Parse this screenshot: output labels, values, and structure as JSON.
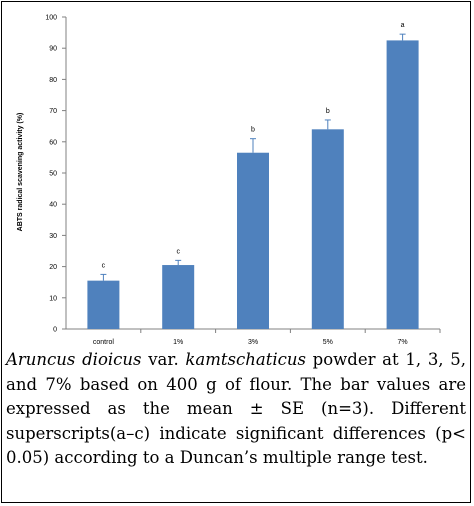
{
  "chart_data": {
    "type": "bar",
    "categories": [
      "control",
      "1%",
      "3%",
      "5%",
      "7%"
    ],
    "values": [
      15.5,
      20.5,
      56.5,
      64,
      92.5
    ],
    "errors": [
      2,
      1.5,
      4.5,
      3,
      2
    ],
    "significance_letters": [
      "c",
      "c",
      "b",
      "b",
      "a"
    ],
    "xlabel": "",
    "ylabel": "ABTS radical scavening activity (%)",
    "ylim": [
      0,
      100
    ],
    "yticks": [
      0,
      10,
      20,
      30,
      40,
      50,
      60,
      70,
      80,
      90,
      100
    ],
    "grid": false,
    "bar_color": "#4f81bd"
  },
  "caption": {
    "species_genus": "Aruncus dioicus",
    "species_var": " var. ",
    "species_epithet": "kamtschaticus",
    "text": " powder at 1, 3, 5, and 7% based on 400 g of flour. The bar values are expressed as the mean ± SE (n=3). Different superscripts(a–c) indicate significant differences (p< 0.05) according to a Duncan’s multiple range test."
  }
}
